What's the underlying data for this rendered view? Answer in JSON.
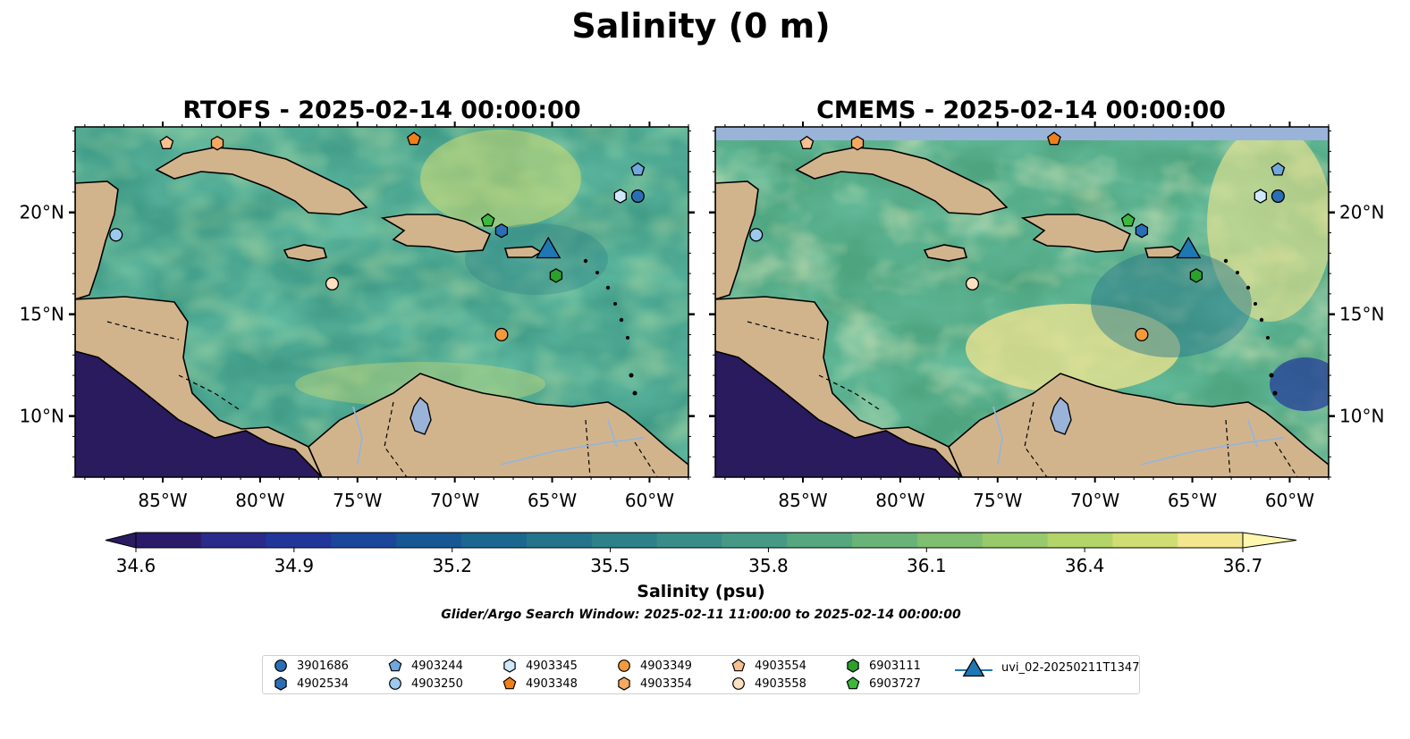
{
  "figure": {
    "title": "Salinity (0 m)",
    "search_window": "Glider/Argo Search Window: 2025-02-11 11:00:00 to 2025-02-14 00:00:00"
  },
  "panels": [
    {
      "title": "RTOFS - 2025-02-14 00:00:00",
      "model": "RTOFS"
    },
    {
      "title": "CMEMS - 2025-02-14 00:00:00",
      "model": "CMEMS"
    }
  ],
  "map": {
    "lon_range": [
      -89.5,
      -58.0
    ],
    "lat_range": [
      7.0,
      24.2
    ],
    "lon_ticks": [
      -85,
      -80,
      -75,
      -70,
      -65,
      -60
    ],
    "lon_tick_labels": [
      "85°W",
      "80°W",
      "75°W",
      "70°W",
      "65°W",
      "60°W"
    ],
    "lat_ticks": [
      10,
      15,
      20
    ],
    "lat_tick_labels": [
      "10°N",
      "15°N",
      "20°N"
    ],
    "land_color": "#d2b48c",
    "lake_color": "#9ab3d9",
    "pacific_color": "#2a1a5e"
  },
  "colorbar": {
    "label": "Salinity (psu)",
    "min": 34.6,
    "max": 36.7,
    "ticks": [
      "34.6",
      "34.9",
      "35.2",
      "35.5",
      "35.8",
      "36.1",
      "36.4",
      "36.7"
    ],
    "extend": "both",
    "colormap": "haline",
    "colors": [
      "#2a1a6a",
      "#2a2a8a",
      "#22369a",
      "#1b479a",
      "#175894",
      "#1b678f",
      "#24748b",
      "#2d818a",
      "#398d88",
      "#469a85",
      "#56a67f",
      "#6ab378",
      "#80be70",
      "#98c96a",
      "#b3d468",
      "#cfdd72",
      "#f2e68f"
    ]
  },
  "platforms": [
    {
      "id": "3901686",
      "marker": "circle",
      "color": "#2a6fb5",
      "lon": -60.6,
      "lat": 20.8
    },
    {
      "id": "4902534",
      "marker": "hexagon",
      "color": "#2a6fb5",
      "lon": -67.6,
      "lat": 19.1
    },
    {
      "id": "4903244",
      "marker": "pentagon",
      "color": "#6fa8dc",
      "lon": -60.6,
      "lat": 22.1
    },
    {
      "id": "4903250",
      "marker": "circle",
      "color": "#9ec9ef",
      "lon": -87.4,
      "lat": 18.9
    },
    {
      "id": "4903345",
      "marker": "hexagon",
      "color": "#cfe8fb",
      "lon": -61.5,
      "lat": 20.8
    },
    {
      "id": "4903348",
      "marker": "pentagon",
      "color": "#f07f1a",
      "lon": -72.1,
      "lat": 23.6
    },
    {
      "id": "4903349",
      "marker": "circle",
      "color": "#f39a3c",
      "lon": -67.6,
      "lat": 14.0
    },
    {
      "id": "4903354",
      "marker": "hexagon",
      "color": "#f5a860",
      "lon": -82.2,
      "lat": 23.4
    },
    {
      "id": "4903554",
      "marker": "pentagon",
      "color": "#f7c08f",
      "lon": -84.8,
      "lat": 23.4
    },
    {
      "id": "4903558",
      "marker": "circle",
      "color": "#fde0c0",
      "lon": -76.3,
      "lat": 16.5
    },
    {
      "id": "6903111",
      "marker": "hexagon",
      "color": "#2ca02c",
      "lon": -64.8,
      "lat": 16.9
    },
    {
      "id": "6903727",
      "marker": "pentagon",
      "color": "#3cb83c",
      "lon": -68.3,
      "lat": 19.6
    },
    {
      "id": "uvi_02-20250211T1347",
      "marker": "triangle",
      "color": "#1f77b4",
      "lon": -65.2,
      "lat": 18.1
    }
  ]
}
